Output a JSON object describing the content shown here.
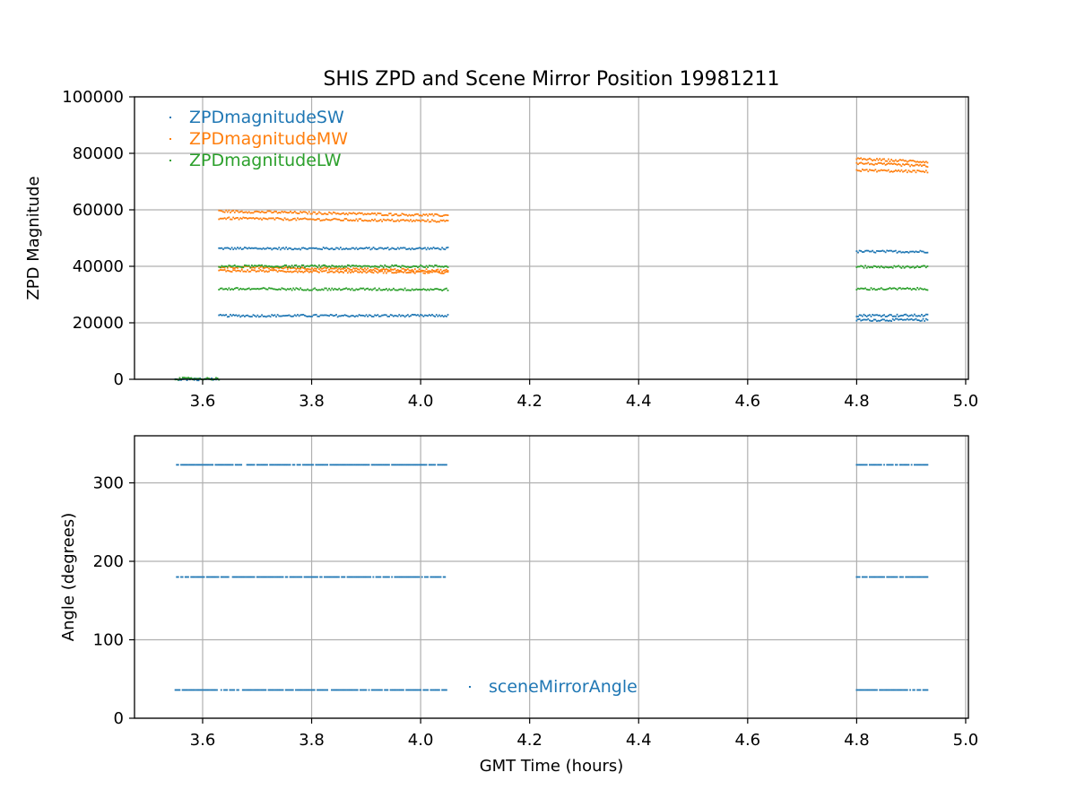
{
  "chart_data": [
    {
      "type": "scatter",
      "title": "SHIS ZPD and Scene Mirror Position 19981211",
      "xlabel": "",
      "ylabel": "ZPD Magnitude",
      "xlim": [
        3.475,
        5.005
      ],
      "ylim": [
        0,
        100000
      ],
      "xticks": [
        "3.6",
        "3.8",
        "4.0",
        "4.2",
        "4.4",
        "4.6",
        "4.8",
        "5.0"
      ],
      "yticks": [
        "0",
        "20000",
        "40000",
        "60000",
        "80000",
        "100000"
      ],
      "grid": true,
      "legend_position": "top-left",
      "series": [
        {
          "name": "ZPDmagnitudeSW",
          "color": "#1f77b4",
          "bands": [
            {
              "x": [
                3.63,
                4.05
              ],
              "y": [
                46300,
                46300
              ]
            },
            {
              "x": [
                3.63,
                4.05
              ],
              "y": [
                22500,
                22500
              ]
            },
            {
              "x": [
                4.8,
                4.93
              ],
              "y": [
                45200,
                45200
              ]
            },
            {
              "x": [
                4.8,
                4.93
              ],
              "y": [
                22600,
                22600
              ]
            },
            {
              "x": [
                4.8,
                4.93
              ],
              "y": [
                21000,
                21000
              ]
            },
            {
              "x": [
                3.55,
                3.63
              ],
              "y": [
                0,
                0
              ]
            }
          ]
        },
        {
          "name": "ZPDmagnitudeMW",
          "color": "#ff7f0e",
          "bands": [
            {
              "x": [
                3.63,
                4.05
              ],
              "y": [
                59500,
                58000
              ]
            },
            {
              "x": [
                3.63,
                4.05
              ],
              "y": [
                57000,
                56000
              ]
            },
            {
              "x": [
                3.63,
                4.05
              ],
              "y": [
                39800,
                38500
              ]
            },
            {
              "x": [
                3.63,
                4.05
              ],
              "y": [
                38500,
                37800
              ]
            },
            {
              "x": [
                4.8,
                4.93
              ],
              "y": [
                78000,
                77000
              ]
            },
            {
              "x": [
                4.8,
                4.93
              ],
              "y": [
                76500,
                75500
              ]
            },
            {
              "x": [
                4.8,
                4.93
              ],
              "y": [
                74000,
                73500
              ]
            }
          ]
        },
        {
          "name": "ZPDmagnitudeLW",
          "color": "#2ca02c",
          "bands": [
            {
              "x": [
                3.63,
                4.05
              ],
              "y": [
                40000,
                40000
              ]
            },
            {
              "x": [
                3.63,
                4.05
              ],
              "y": [
                32000,
                31800
              ]
            },
            {
              "x": [
                4.8,
                4.93
              ],
              "y": [
                39800,
                39800
              ]
            },
            {
              "x": [
                4.8,
                4.93
              ],
              "y": [
                32000,
                32000
              ]
            },
            {
              "x": [
                3.55,
                3.63
              ],
              "y": [
                200,
                200
              ]
            }
          ]
        }
      ]
    },
    {
      "type": "scatter",
      "title": "",
      "xlabel": "GMT Time (hours)",
      "ylabel": "Angle (degrees)",
      "xlim": [
        3.475,
        5.005
      ],
      "ylim": [
        0,
        360
      ],
      "xticks": [
        "3.6",
        "3.8",
        "4.0",
        "4.2",
        "4.4",
        "4.6",
        "4.8",
        "5.0"
      ],
      "yticks": [
        "0",
        "100",
        "200",
        "300"
      ],
      "grid": true,
      "legend_position": "lower-center",
      "series": [
        {
          "name": "sceneMirrorAngle",
          "color": "#1f77b4",
          "bands": [
            {
              "x": [
                3.55,
                4.05
              ],
              "y": [
                323,
                323
              ]
            },
            {
              "x": [
                3.55,
                4.05
              ],
              "y": [
                180,
                180
              ]
            },
            {
              "x": [
                3.55,
                4.05
              ],
              "y": [
                36,
                36
              ]
            },
            {
              "x": [
                4.8,
                4.93
              ],
              "y": [
                323,
                323
              ]
            },
            {
              "x": [
                4.8,
                4.93
              ],
              "y": [
                180,
                180
              ]
            },
            {
              "x": [
                4.8,
                4.93
              ],
              "y": [
                36,
                36
              ]
            }
          ]
        }
      ]
    }
  ]
}
